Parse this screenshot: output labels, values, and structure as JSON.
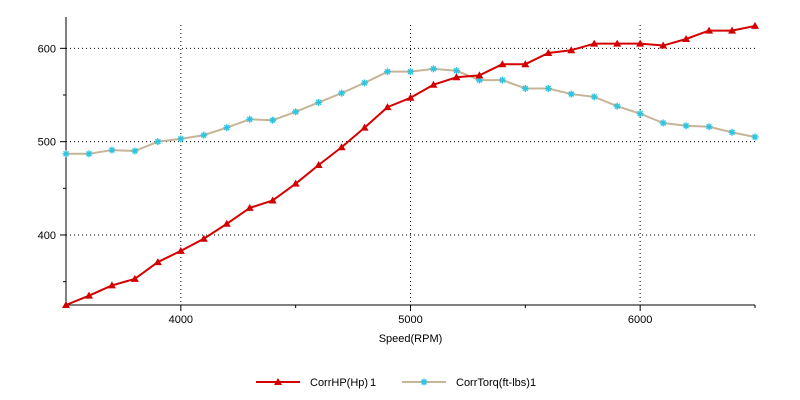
{
  "chart_data": {
    "type": "line",
    "xlabel": "Speed(RPM)",
    "ylabel": "",
    "xlim": [
      3500,
      6500
    ],
    "ylim": [
      325,
      625
    ],
    "x_ticks": [
      4000,
      5000,
      6000
    ],
    "y_ticks": [
      400,
      500,
      600
    ],
    "x_minor_step": 500,
    "grid": true,
    "legend_position": "bottom",
    "x": [
      3500,
      3600,
      3700,
      3800,
      3900,
      4000,
      4100,
      4200,
      4300,
      4400,
      4500,
      4600,
      4700,
      4800,
      4900,
      5000,
      5100,
      5200,
      5300,
      5400,
      5500,
      5600,
      5700,
      5800,
      5900,
      6000,
      6100,
      6200,
      6300,
      6400,
      6500
    ],
    "series": [
      {
        "name": "CorrHP(Hp)",
        "run": "1",
        "color": "#d40000",
        "marker": "triangle",
        "values": [
          325,
          335,
          346,
          353,
          371,
          383,
          396,
          412,
          429,
          437,
          455,
          475,
          494,
          515,
          537,
          547,
          561,
          569,
          571,
          583,
          583,
          595,
          598,
          605,
          605,
          605,
          603,
          610,
          619,
          619,
          624
        ]
      },
      {
        "name": "CorrTorq(ft-lbs)",
        "run": "1",
        "color": "#c8b496",
        "marker_color": "#2ec4e0",
        "marker": "asterisk",
        "values": [
          487,
          487,
          491,
          490,
          500,
          503,
          507,
          515,
          524,
          523,
          532,
          542,
          552,
          563,
          575,
          575,
          578,
          576,
          566,
          566,
          557,
          557,
          551,
          548,
          538,
          530,
          520,
          517,
          516,
          510,
          505
        ]
      }
    ]
  }
}
